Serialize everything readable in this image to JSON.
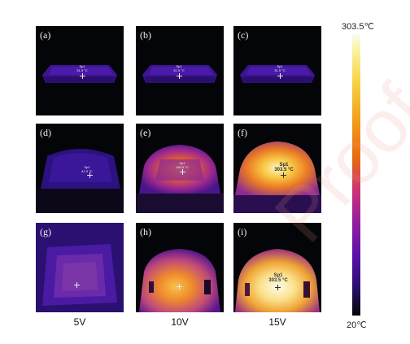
{
  "figure": {
    "panels": [
      {
        "label": "(a)",
        "spot_label": "Sp1",
        "spot_value": "31.5 °C"
      },
      {
        "label": "(b)",
        "spot_label": "Sp1",
        "spot_value": "31.5 °C"
      },
      {
        "label": "(c)",
        "spot_label": "Sp1",
        "spot_value": "31.5 °C"
      },
      {
        "label": "(d)",
        "spot_label": "Sp1",
        "spot_value": "41.9 °C"
      },
      {
        "label": "(e)",
        "spot_label": "Sp1",
        "spot_value": "180.5 °C"
      },
      {
        "label": "(f)",
        "spot_label": "Sp1",
        "spot_value": "303.5 °C"
      },
      {
        "label": "(g)",
        "spot_label": "",
        "spot_value": ""
      },
      {
        "label": "(h)",
        "spot_label": "",
        "spot_value": ""
      },
      {
        "label": "(i)",
        "spot_label": "Sp1",
        "spot_value": "303.5 °C"
      }
    ],
    "column_labels": [
      "5V",
      "10V",
      "15V"
    ],
    "colorbar": {
      "max_label": "303.5℃",
      "min_label": "20℃"
    },
    "watermark": "Proof"
  }
}
